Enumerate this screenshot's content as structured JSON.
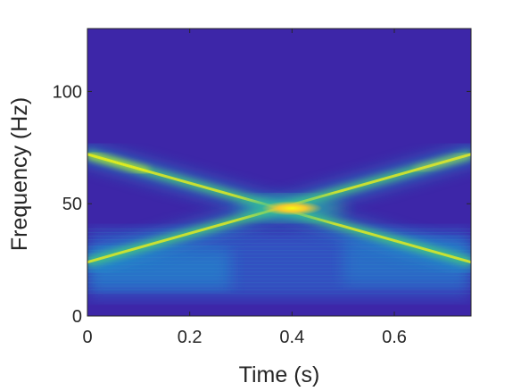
{
  "chart_data": {
    "type": "heatmap",
    "title": "",
    "xlabel": "Time (s)",
    "ylabel": "Frequency (Hz)",
    "xlim": [
      0,
      0.75
    ],
    "ylim": [
      0,
      128
    ],
    "xticks": [
      0,
      0.2,
      0.4,
      0.6
    ],
    "xtick_labels": [
      "0",
      "0.2",
      "0.4",
      "0.6"
    ],
    "yticks": [
      0,
      50,
      100
    ],
    "ytick_labels": [
      "0",
      "50",
      "100"
    ],
    "colormap": "parula",
    "colors": {
      "background": "#3d26a8",
      "low": "#3d26a8",
      "mid": "#1fa8c9",
      "high": "#f9fb0e"
    },
    "components": [
      {
        "kind": "linear_chirp",
        "time": [
          0,
          0.75
        ],
        "freq": [
          72,
          24
        ]
      },
      {
        "kind": "linear_chirp",
        "time": [
          0,
          0.75
        ],
        "freq": [
          24,
          72
        ]
      },
      {
        "kind": "peak",
        "time": 0.4,
        "freq": 48
      }
    ],
    "grid": false,
    "legend": "none"
  }
}
